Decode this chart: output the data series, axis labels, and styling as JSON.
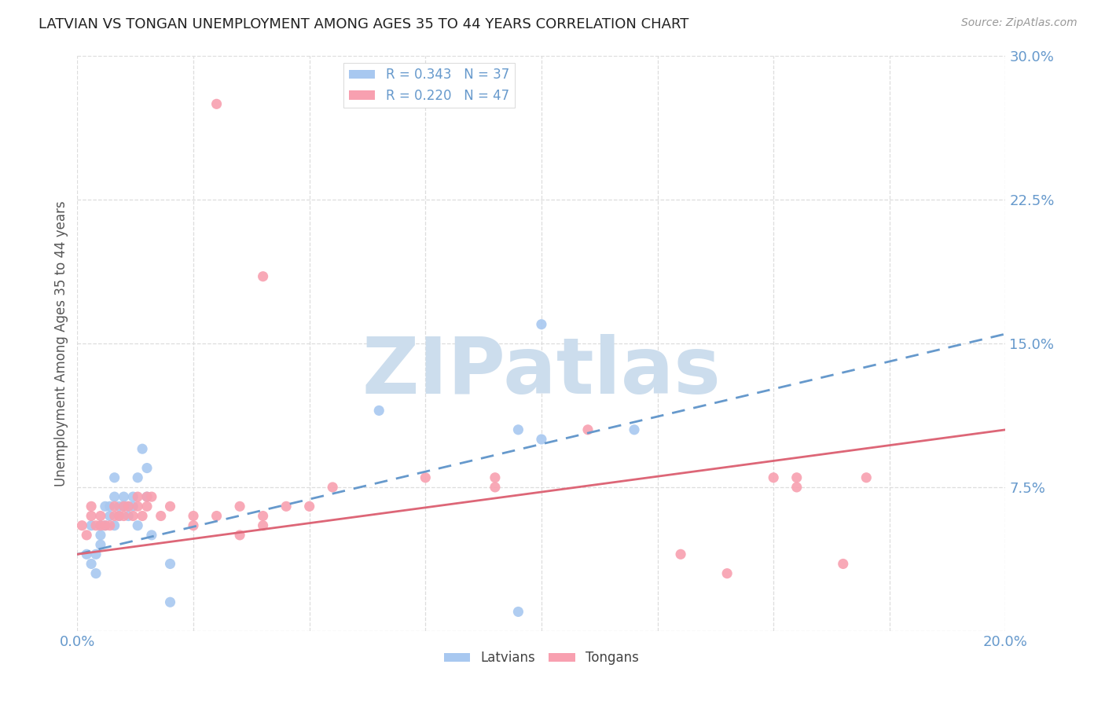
{
  "title": "LATVIAN VS TONGAN UNEMPLOYMENT AMONG AGES 35 TO 44 YEARS CORRELATION CHART",
  "source": "Source: ZipAtlas.com",
  "ylabel": "Unemployment Among Ages 35 to 44 years",
  "xlim": [
    0.0,
    0.2
  ],
  "ylim": [
    0.0,
    0.3
  ],
  "xtick_vals": [
    0.0,
    0.025,
    0.05,
    0.075,
    0.1,
    0.125,
    0.15,
    0.175,
    0.2
  ],
  "xtick_labels": [
    "0.0%",
    "",
    "",
    "",
    "",
    "",
    "",
    "",
    "20.0%"
  ],
  "ytick_vals": [
    0.0,
    0.075,
    0.15,
    0.225,
    0.3
  ],
  "ytick_labels": [
    "",
    "7.5%",
    "15.0%",
    "22.5%",
    "30.0%"
  ],
  "latvian_color": "#a8c8f0",
  "tongan_color": "#f8a0b0",
  "latvian_line_color": "#6699cc",
  "tongan_line_color": "#dd6677",
  "latvian_R": 0.343,
  "latvian_N": 37,
  "tongan_R": 0.22,
  "tongan_N": 47,
  "watermark_text": "ZIPatlas",
  "watermark_color": "#ccdded",
  "grid_color": "#dddddd",
  "tick_color": "#6699cc",
  "ylabel_color": "#555555",
  "title_color": "#222222",
  "source_color": "#999999",
  "latvian_scatter_x": [
    0.002,
    0.003,
    0.003,
    0.004,
    0.004,
    0.005,
    0.005,
    0.005,
    0.006,
    0.006,
    0.007,
    0.007,
    0.008,
    0.008,
    0.008,
    0.009,
    0.009,
    0.01,
    0.01,
    0.011,
    0.011,
    0.012,
    0.012,
    0.013,
    0.013,
    0.014,
    0.015,
    0.015,
    0.016,
    0.02,
    0.02,
    0.065,
    0.095,
    0.1,
    0.12,
    0.1,
    0.095
  ],
  "latvian_scatter_y": [
    0.04,
    0.035,
    0.055,
    0.04,
    0.03,
    0.045,
    0.05,
    0.055,
    0.055,
    0.065,
    0.06,
    0.065,
    0.07,
    0.08,
    0.055,
    0.06,
    0.065,
    0.07,
    0.065,
    0.06,
    0.065,
    0.065,
    0.07,
    0.055,
    0.08,
    0.095,
    0.085,
    0.07,
    0.05,
    0.035,
    0.015,
    0.115,
    0.105,
    0.1,
    0.105,
    0.16,
    0.01
  ],
  "tongan_scatter_x": [
    0.001,
    0.002,
    0.003,
    0.003,
    0.004,
    0.005,
    0.005,
    0.006,
    0.007,
    0.008,
    0.008,
    0.009,
    0.01,
    0.01,
    0.011,
    0.012,
    0.013,
    0.013,
    0.014,
    0.015,
    0.015,
    0.016,
    0.018,
    0.02,
    0.025,
    0.025,
    0.03,
    0.035,
    0.035,
    0.04,
    0.04,
    0.045,
    0.05,
    0.055,
    0.03,
    0.04,
    0.075,
    0.09,
    0.09,
    0.11,
    0.13,
    0.14,
    0.15,
    0.155,
    0.155,
    0.165,
    0.17
  ],
  "tongan_scatter_y": [
    0.055,
    0.05,
    0.06,
    0.065,
    0.055,
    0.055,
    0.06,
    0.055,
    0.055,
    0.06,
    0.065,
    0.06,
    0.065,
    0.06,
    0.065,
    0.06,
    0.065,
    0.07,
    0.06,
    0.07,
    0.065,
    0.07,
    0.06,
    0.065,
    0.055,
    0.06,
    0.06,
    0.05,
    0.065,
    0.055,
    0.06,
    0.065,
    0.065,
    0.075,
    0.275,
    0.185,
    0.08,
    0.075,
    0.08,
    0.105,
    0.04,
    0.03,
    0.08,
    0.08,
    0.075,
    0.035,
    0.08
  ],
  "lv_trend_x": [
    0.0,
    0.2
  ],
  "lv_trend_y": [
    0.04,
    0.155
  ],
  "to_trend_x": [
    0.0,
    0.2
  ],
  "to_trend_y": [
    0.04,
    0.105
  ]
}
